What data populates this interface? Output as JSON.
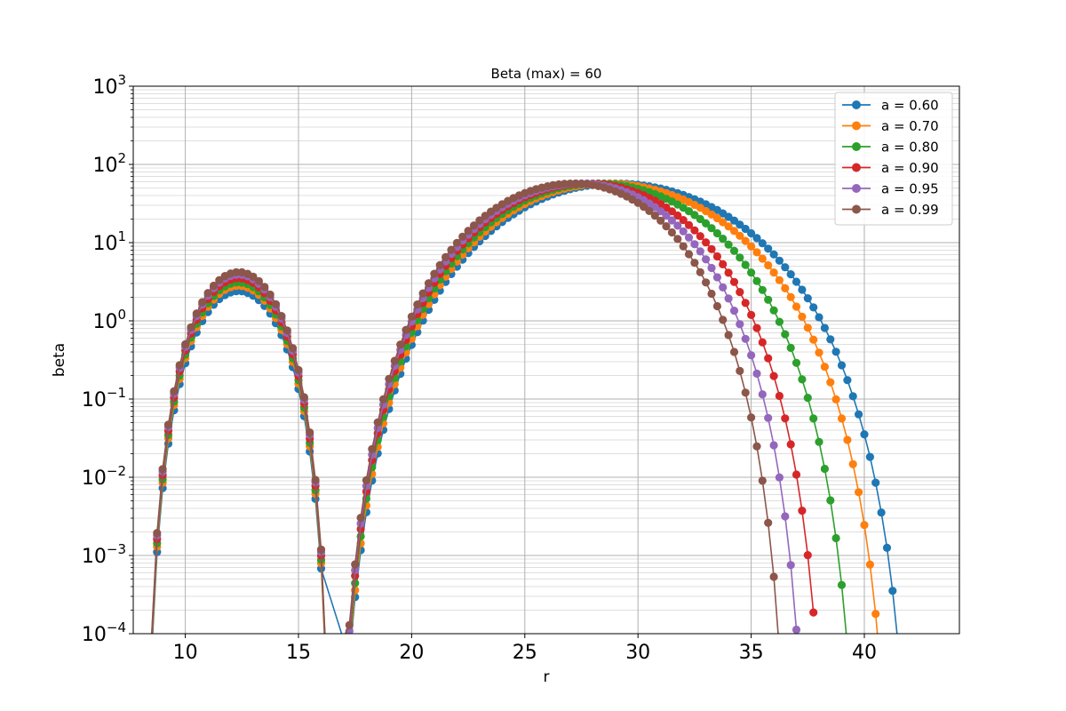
{
  "chart_data": {
    "type": "line",
    "title": "Beta (max) = 60",
    "xlabel": "r",
    "ylabel": "beta",
    "xlim": [
      7.7,
      44.2
    ],
    "ylim": [
      0.0001,
      1000
    ],
    "yscale": "log",
    "grid": "on (major and minor)",
    "legend_position": "top-right",
    "x_ticks": [
      10,
      15,
      20,
      25,
      30,
      35,
      40
    ],
    "y_ticks": [
      {
        "value": 0.0001,
        "base": "10",
        "exp": "-4"
      },
      {
        "value": 0.001,
        "base": "10",
        "exp": "-3"
      },
      {
        "value": 0.01,
        "base": "10",
        "exp": "-2"
      },
      {
        "value": 0.1,
        "base": "10",
        "exp": "-1"
      },
      {
        "value": 1,
        "base": "10",
        "exp": "0"
      },
      {
        "value": 10,
        "base": "10",
        "exp": "1"
      },
      {
        "value": 100,
        "base": "10",
        "exp": "2"
      },
      {
        "value": 1000,
        "base": "10",
        "exp": "3"
      }
    ],
    "model": {
      "peak1_r": 12.8,
      "inner_zero_r": 8.2,
      "middle_zero_r": 16.5,
      "peak2_beta": 57,
      "series_params": [
        {
          "peak1_beta": 2.4,
          "peak2_r": 29.0,
          "outer_zero_r": 42.35
        },
        {
          "peak1_beta": 2.8,
          "peak2_r": 28.6,
          "outer_zero_r": 41.45
        },
        {
          "peak1_beta": 3.1,
          "peak2_r": 28.2,
          "outer_zero_r": 40.0
        },
        {
          "peak1_beta": 3.5,
          "peak2_r": 27.8,
          "outer_zero_r": 38.55
        },
        {
          "peak1_beta": 3.9,
          "peak2_r": 27.5,
          "outer_zero_r": 37.7
        },
        {
          "peak1_beta": 4.2,
          "peak2_r": 27.2,
          "outer_zero_r": 36.85
        }
      ]
    },
    "series": [
      {
        "name": "a = 0.60",
        "color": "#1f77b4"
      },
      {
        "name": "a = 0.70",
        "color": "#ff7f0e"
      },
      {
        "name": "a = 0.80",
        "color": "#2ca02c"
      },
      {
        "name": "a = 0.90",
        "color": "#d62728"
      },
      {
        "name": "a = 0.95",
        "color": "#9467bd"
      },
      {
        "name": "a = 0.99",
        "color": "#8c564b"
      }
    ]
  }
}
